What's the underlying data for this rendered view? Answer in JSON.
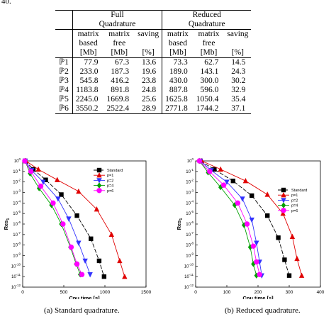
{
  "page_fragment": "40.",
  "table": {
    "group_full": [
      "Full",
      "Quadrature"
    ],
    "group_reduced": [
      "Reduced",
      "Quadrature"
    ],
    "sub_headers": [
      [
        "matrix",
        "based",
        "[Mb]"
      ],
      [
        "matrix",
        "free",
        "[Mb]"
      ],
      [
        "saving",
        "",
        "[%]"
      ],
      [
        "matrix",
        "based",
        "[Mb]"
      ],
      [
        "matrix",
        "free",
        "[Mb]"
      ],
      [
        "saving",
        "",
        "[%]"
      ]
    ],
    "rows": [
      {
        "label": "ℙ1",
        "values": [
          "77.9",
          "67.3",
          "13.6",
          "73.3",
          "62.7",
          "14.5"
        ]
      },
      {
        "label": "ℙ2",
        "values": [
          "233.0",
          "187.3",
          "19.6",
          "189.0",
          "143.1",
          "24.3"
        ]
      },
      {
        "label": "ℙ3",
        "values": [
          "545.8",
          "416.2",
          "23.8",
          "430.0",
          "300.0",
          "30.2"
        ]
      },
      {
        "label": "ℙ4",
        "values": [
          "1183.8",
          "891.8",
          "24.8",
          "887.8",
          "596.0",
          "32.9"
        ]
      },
      {
        "label": "ℙ5",
        "values": [
          "2245.0",
          "1669.8",
          "25.6",
          "1625.8",
          "1050.4",
          "35.4"
        ]
      },
      {
        "label": "ℙ6",
        "values": [
          "3550.2",
          "2522.4",
          "28.9",
          "2771.8",
          "1744.2",
          "37.1"
        ]
      }
    ]
  },
  "chart_data": [
    {
      "type": "line",
      "caption": "(a)  Standard quadrature.",
      "xlabel": "Cpu time [s]",
      "ylabel": "Res",
      "ylabel_sub": "1",
      "xlim": [
        0,
        1500
      ],
      "x_ticks": [
        0,
        500,
        1000,
        1500
      ],
      "ylim_exp": [
        -12,
        0
      ],
      "y_tick_exps": [
        0,
        -1,
        -2,
        -3,
        -4,
        -5,
        -6,
        -7,
        -8,
        -9,
        -10,
        -11,
        -12
      ],
      "legend_position": "top-right",
      "series": [
        {
          "name": "Standard",
          "color": "#000000",
          "marker": "square",
          "dash": "6,2",
          "x": [
            30,
            130,
            280,
            470,
            660,
            830,
            930,
            990
          ],
          "y": [
            0.0,
            -0.8,
            -1.8,
            -3.2,
            -5.2,
            -7.4,
            -9.5,
            -11.0
          ]
        },
        {
          "name": "p=1",
          "color": "#e00000",
          "marker": "triangle-up",
          "dash": "",
          "x": [
            40,
            190,
            420,
            680,
            900,
            1080,
            1180,
            1240
          ],
          "y": [
            0.0,
            -0.8,
            -1.8,
            -2.9,
            -4.6,
            -7.0,
            -9.5,
            -11.0
          ]
        },
        {
          "name": "p=2",
          "color": "#3333ff",
          "marker": "triangle-down",
          "dash": "",
          "x": [
            30,
            110,
            250,
            430,
            560,
            680,
            760,
            820
          ],
          "y": [
            0.0,
            -0.9,
            -2.0,
            -3.6,
            -5.5,
            -7.8,
            -9.5,
            -10.8
          ]
        },
        {
          "name": "p=4",
          "color": "#00a000",
          "marker": "diamond",
          "dash": "",
          "x": [
            30,
            90,
            200,
            350,
            470,
            580,
            650,
            700
          ],
          "y": [
            0.0,
            -1.2,
            -2.6,
            -4.2,
            -6.0,
            -8.2,
            -9.8,
            -10.8
          ]
        },
        {
          "name": "p=6",
          "color": "#ff00ff",
          "marker": "circle",
          "dash": "",
          "x": [
            25,
            100,
            220,
            370,
            490,
            590,
            660,
            720
          ],
          "y": [
            0.0,
            -1.0,
            -2.4,
            -4.0,
            -6.0,
            -8.2,
            -9.8,
            -10.8
          ]
        }
      ]
    },
    {
      "type": "line",
      "caption": "(b)  Reduced quadrature.",
      "xlabel": "Cpu time [s]",
      "ylabel": "Res",
      "ylabel_sub": "1",
      "xlim": [
        0,
        400
      ],
      "x_ticks": [
        0,
        100,
        200,
        300,
        400
      ],
      "ylim_exp": [
        -12,
        0
      ],
      "y_tick_exps": [
        0,
        -1,
        -2,
        -3,
        -4,
        -5,
        -6,
        -7,
        -8,
        -9,
        -10,
        -11,
        -12
      ],
      "legend_position": "right",
      "series": [
        {
          "name": "Standard",
          "color": "#000000",
          "marker": "square",
          "dash": "6,2",
          "x": [
            15,
            60,
            120,
            180,
            230,
            265,
            285,
            300
          ],
          "y": [
            0.0,
            -0.8,
            -1.9,
            -3.3,
            -5.2,
            -7.3,
            -9.4,
            -10.9
          ]
        },
        {
          "name": "p=1",
          "color": "#e00000",
          "marker": "triangle-up",
          "dash": "",
          "x": [
            20,
            80,
            160,
            230,
            280,
            310,
            325,
            340
          ],
          "y": [
            0.0,
            -0.8,
            -1.9,
            -3.2,
            -5.0,
            -7.2,
            -9.3,
            -10.9
          ]
        },
        {
          "name": "p=2",
          "color": "#3333ff",
          "marker": "triangle-down",
          "dash": "",
          "x": [
            15,
            50,
            100,
            150,
            180,
            195,
            205,
            212
          ],
          "y": [
            0.0,
            -0.9,
            -2.0,
            -3.6,
            -5.6,
            -7.8,
            -9.6,
            -10.9
          ]
        },
        {
          "name": "p=4",
          "color": "#00a000",
          "marker": "diamond",
          "dash": "",
          "x": [
            12,
            40,
            80,
            125,
            155,
            175,
            185,
            195
          ],
          "y": [
            0.0,
            -1.1,
            -2.5,
            -4.2,
            -6.1,
            -8.2,
            -9.8,
            -10.9
          ]
        },
        {
          "name": "p=6",
          "color": "#ff00ff",
          "marker": "circle",
          "dash": "",
          "x": [
            12,
            45,
            90,
            135,
            165,
            185,
            195,
            205
          ],
          "y": [
            0.0,
            -1.0,
            -2.3,
            -4.0,
            -6.0,
            -8.1,
            -9.6,
            -10.8
          ]
        }
      ]
    }
  ]
}
